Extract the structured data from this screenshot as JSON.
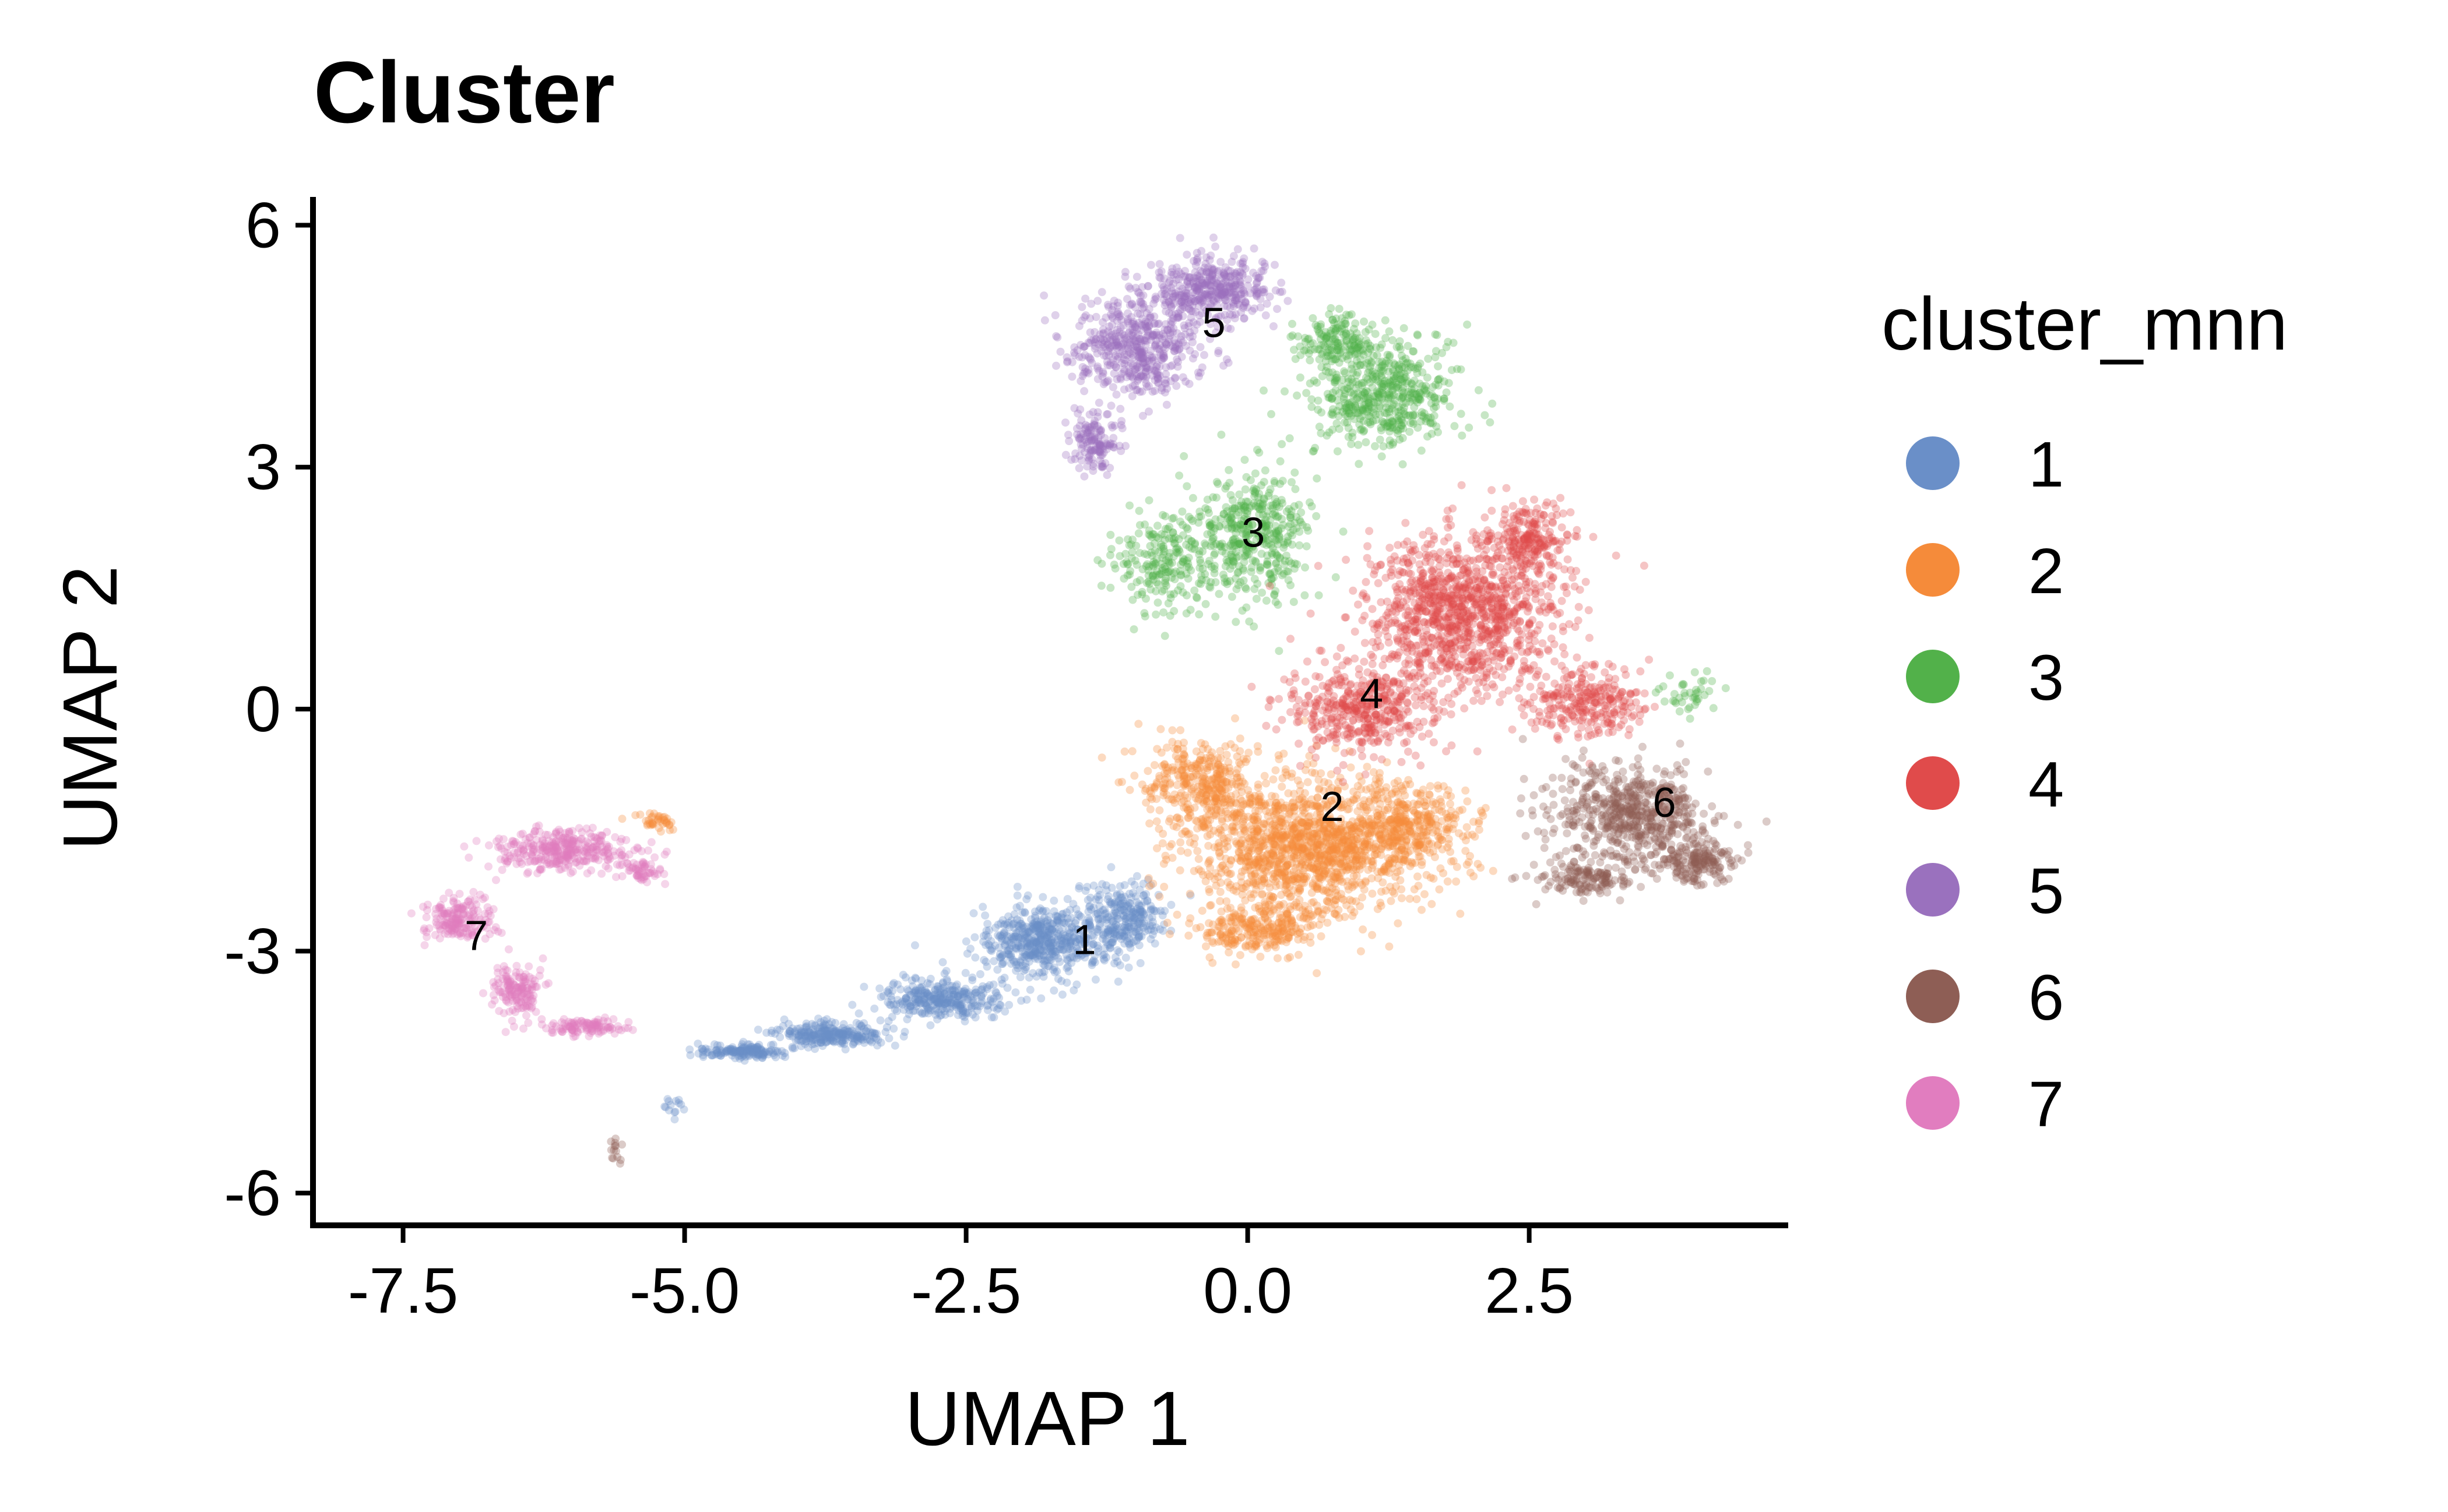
{
  "chart_data": {
    "type": "scatter",
    "title": "Cluster",
    "xlabel": "UMAP 1",
    "ylabel": "UMAP 2",
    "xlim": [
      -8.3,
      4.8
    ],
    "ylim": [
      -6.4,
      6.35
    ],
    "x_ticks": [
      {
        "value": -7.5,
        "label": "-7.5"
      },
      {
        "value": -5.0,
        "label": "-5.0"
      },
      {
        "value": -2.5,
        "label": "-2.5"
      },
      {
        "value": 0.0,
        "label": "0.0"
      },
      {
        "value": 2.5,
        "label": "2.5"
      }
    ],
    "y_ticks": [
      {
        "value": 6,
        "label": "6"
      },
      {
        "value": 3,
        "label": "3"
      },
      {
        "value": 0,
        "label": "0"
      },
      {
        "value": -3,
        "label": "-3"
      },
      {
        "value": -6,
        "label": "-6"
      }
    ],
    "grid": false,
    "legend": {
      "title": "cluster_mnn",
      "position": "right"
    },
    "series": [
      {
        "name": "1",
        "color": "#6A8FC8",
        "label_position": [
          -1.45,
          -2.9
        ],
        "regions": [
          {
            "center": [
              -1.8,
              -2.9
            ],
            "spread": [
              0.55,
              0.42
            ],
            "points": 520
          },
          {
            "center": [
              -1.1,
              -2.6
            ],
            "spread": [
              0.35,
              0.4
            ],
            "points": 260
          },
          {
            "center": [
              -2.7,
              -3.6
            ],
            "spread": [
              0.5,
              0.22
            ],
            "points": 320
          },
          {
            "center": [
              -3.7,
              -4.05
            ],
            "spread": [
              0.45,
              0.14
            ],
            "points": 260
          },
          {
            "center": [
              -4.5,
              -4.25
            ],
            "spread": [
              0.35,
              0.08
            ],
            "points": 160
          },
          {
            "center": [
              -5.1,
              -4.9
            ],
            "spread": [
              0.12,
              0.18
            ],
            "points": 14
          }
        ]
      },
      {
        "name": "2",
        "color": "#F58B3A",
        "label_position": [
          0.75,
          -1.25
        ],
        "regions": [
          {
            "center": [
              0.5,
              -1.7
            ],
            "spread": [
              0.9,
              0.75
            ],
            "points": 1300
          },
          {
            "center": [
              -0.45,
              -0.9
            ],
            "spread": [
              0.45,
              0.5
            ],
            "points": 330
          },
          {
            "center": [
              1.4,
              -1.5
            ],
            "spread": [
              0.55,
              0.5
            ],
            "points": 380
          },
          {
            "center": [
              0.1,
              -2.7
            ],
            "spread": [
              0.5,
              0.3
            ],
            "points": 260
          },
          {
            "center": [
              -5.25,
              -1.4
            ],
            "spread": [
              0.22,
              0.1
            ],
            "points": 40
          }
        ]
      },
      {
        "name": "3",
        "color": "#52B14A",
        "label_position": [
          0.05,
          2.15
        ],
        "regions": [
          {
            "center": [
              1.2,
              3.9
            ],
            "spread": [
              0.6,
              0.6
            ],
            "points": 520
          },
          {
            "center": [
              0.05,
              2.2
            ],
            "spread": [
              0.45,
              0.8
            ],
            "points": 420
          },
          {
            "center": [
              -0.75,
              1.8
            ],
            "spread": [
              0.45,
              0.6
            ],
            "points": 220
          },
          {
            "center": [
              0.8,
              4.6
            ],
            "spread": [
              0.3,
              0.3
            ],
            "points": 140
          },
          {
            "center": [
              3.9,
              0.2
            ],
            "spread": [
              0.25,
              0.25
            ],
            "points": 40
          }
        ]
      },
      {
        "name": "4",
        "color": "#E04B4B",
        "label_position": [
          1.1,
          0.15
        ],
        "regions": [
          {
            "center": [
              1.9,
              1.2
            ],
            "spread": [
              0.8,
              0.9
            ],
            "points": 1100
          },
          {
            "center": [
              1.0,
              0.0
            ],
            "spread": [
              0.6,
              0.5
            ],
            "points": 420
          },
          {
            "center": [
              2.5,
              2.1
            ],
            "spread": [
              0.3,
              0.4
            ],
            "points": 200
          },
          {
            "center": [
              3.0,
              0.1
            ],
            "spread": [
              0.45,
              0.4
            ],
            "points": 260
          }
        ]
      },
      {
        "name": "5",
        "color": "#9A71BE",
        "label_position": [
          -0.3,
          4.75
        ],
        "regions": [
          {
            "center": [
              -1.0,
              4.5
            ],
            "spread": [
              0.5,
              0.6
            ],
            "points": 520
          },
          {
            "center": [
              -0.3,
              5.2
            ],
            "spread": [
              0.45,
              0.35
            ],
            "points": 380
          },
          {
            "center": [
              -1.35,
              3.3
            ],
            "spread": [
              0.2,
              0.35
            ],
            "points": 140
          }
        ]
      },
      {
        "name": "6",
        "color": "#8E5E55",
        "label_position": [
          3.7,
          -1.2
        ],
        "regions": [
          {
            "center": [
              3.4,
              -1.3
            ],
            "spread": [
              0.6,
              0.55
            ],
            "points": 600
          },
          {
            "center": [
              4.0,
              -1.9
            ],
            "spread": [
              0.3,
              0.25
            ],
            "points": 180
          },
          {
            "center": [
              3.0,
              -2.1
            ],
            "spread": [
              0.4,
              0.2
            ],
            "points": 140
          },
          {
            "center": [
              -5.65,
              -5.45
            ],
            "spread": [
              0.1,
              0.15
            ],
            "points": 14
          }
        ]
      },
      {
        "name": "7",
        "color": "#E17DBF",
        "label_position": [
          -6.85,
          -2.85
        ],
        "regions": [
          {
            "center": [
              -6.1,
              -1.75
            ],
            "spread": [
              0.55,
              0.22
            ],
            "points": 340
          },
          {
            "center": [
              -7.0,
              -2.6
            ],
            "spread": [
              0.3,
              0.25
            ],
            "points": 180
          },
          {
            "center": [
              -6.5,
              -3.5
            ],
            "spread": [
              0.2,
              0.3
            ],
            "points": 150
          },
          {
            "center": [
              -5.9,
              -3.95
            ],
            "spread": [
              0.3,
              0.1
            ],
            "points": 110
          },
          {
            "center": [
              -5.4,
              -2.0
            ],
            "spread": [
              0.2,
              0.15
            ],
            "points": 60
          }
        ]
      }
    ]
  }
}
